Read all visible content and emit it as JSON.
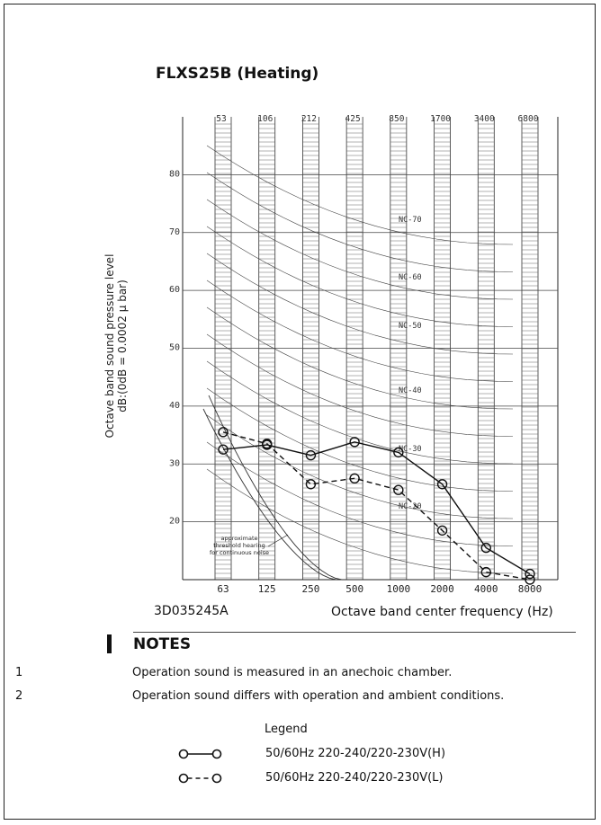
{
  "page": {
    "title": "FLXS25B (Heating)",
    "code": "3D035245A",
    "notes": {
      "heading": "NOTES",
      "items": [
        {
          "num": "1",
          "text": "Operation sound is measured in an anechoic chamber."
        },
        {
          "num": "2",
          "text": "Operation sound differs with operation and ambient conditions."
        }
      ]
    },
    "legend": {
      "title": "Legend",
      "items": [
        {
          "label": "50/60Hz 220-240/220-230V(H)",
          "style": "solid"
        },
        {
          "label": "50/60Hz 220-240/220-230V(L)",
          "style": "dashed"
        }
      ]
    }
  },
  "chart_data": {
    "type": "line",
    "title": "FLXS25B (Heating)",
    "xlabel": "Octave band center frequency (Hz)",
    "ylabel_lines": [
      "Octave band sound pressure level",
      "dB:(0dB = 0.0002 μ bar)"
    ],
    "x_bottom_ticks": [
      "63",
      "125",
      "250",
      "500",
      "1000",
      "2000",
      "4000",
      "8000"
    ],
    "x_top_ticks": [
      "53",
      "106",
      "212",
      "425",
      "850",
      "1700",
      "3400",
      "6800"
    ],
    "y_ticks": [
      20,
      30,
      40,
      50,
      60,
      70,
      80
    ],
    "ylim": [
      10,
      90
    ],
    "series": [
      {
        "name": "50/60Hz 220-240/220-230V(H)",
        "style": "solid",
        "values": [
          32.5,
          33.3,
          31.5,
          33.8,
          32,
          26.5,
          15.5,
          11
        ]
      },
      {
        "name": "50/60Hz 220-240/220-230V(L)",
        "style": "dashed",
        "values": [
          35.5,
          33.5,
          26.5,
          27.5,
          25.5,
          18.5,
          11.3,
          10
        ]
      }
    ],
    "nc_labels": [
      "NC-70",
      "NC-60",
      "NC-50",
      "NC-40",
      "NC-30",
      "NC-20"
    ],
    "annotation": [
      "approximate",
      "threshold hearing",
      "for continuous noise"
    ]
  }
}
